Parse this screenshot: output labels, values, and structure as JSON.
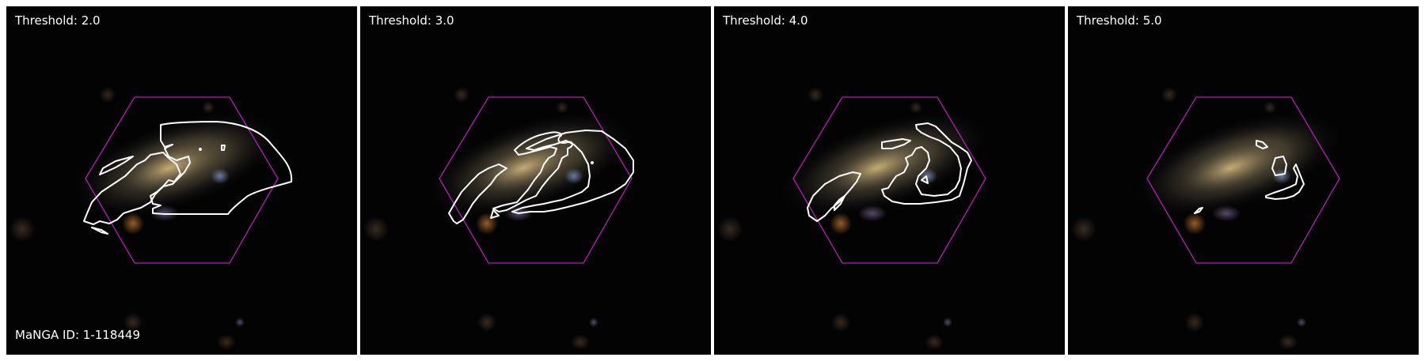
{
  "panels": [
    {
      "threshold_label": "Threshold: 2.0"
    },
    {
      "threshold_label": "Threshold: 3.0"
    },
    {
      "threshold_label": "Threshold: 4.0"
    },
    {
      "threshold_label": "Threshold: 5.0"
    }
  ],
  "manga_id_label": "MaNGA ID: 1-118449",
  "colors": {
    "hexagon": "#b21fb2",
    "contour": "#ffffff",
    "background": "#030304"
  }
}
